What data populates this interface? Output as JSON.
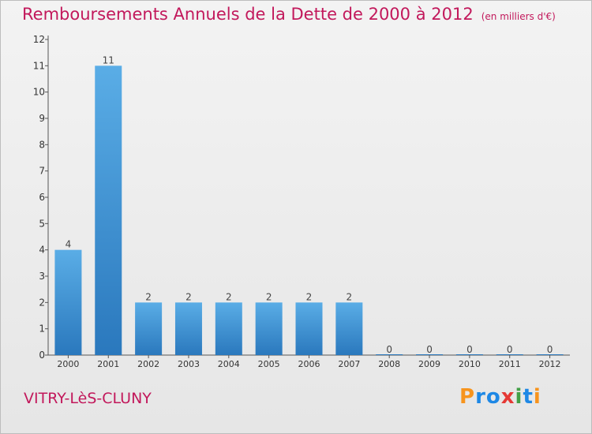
{
  "header": {
    "title": "Remboursements Annuels de la Dette de 2000 à 2012",
    "subtitle": "(en milliers d'€)"
  },
  "footer": {
    "place": "VITRY-LèS-CLUNY",
    "logo": [
      "P",
      "r",
      "o",
      "x",
      "i",
      "t",
      "i"
    ],
    "logo_colors": [
      "#f7941d",
      "#1e88e5",
      "#1e88e5",
      "#e53935",
      "#43a047",
      "#1e88e5",
      "#f7941d"
    ]
  },
  "colors": {
    "title": "#c2185b",
    "bar_top": "#5aade6",
    "bar_bottom": "#2a78bd"
  },
  "chart_data": {
    "type": "bar",
    "title": "Remboursements Annuels de la Dette de 2000 à 2012",
    "subtitle": "(en milliers d'€)",
    "categories": [
      "2000",
      "2001",
      "2002",
      "2003",
      "2004",
      "2005",
      "2006",
      "2007",
      "2008",
      "2009",
      "2010",
      "2011",
      "2012"
    ],
    "values": [
      4,
      11,
      2,
      2,
      2,
      2,
      2,
      2,
      0,
      0,
      0,
      0,
      0
    ],
    "ylim": [
      0,
      12
    ],
    "yticks": [
      "0",
      "1",
      "2",
      "3",
      "4",
      "5",
      "6",
      "7",
      "8",
      "9",
      "10",
      "11",
      "12"
    ],
    "grid": false,
    "show_value_labels": true
  }
}
